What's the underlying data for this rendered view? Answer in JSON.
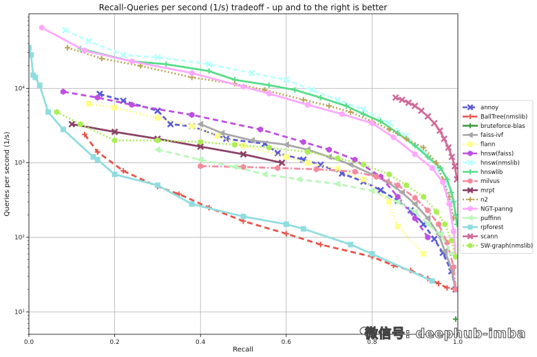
{
  "chart_data": {
    "type": "line",
    "title": "Recall-Queries per second (1/s) tradeoff - up and to the right is better",
    "xlabel": "Recall",
    "ylabel": "Queries per second (1/s)",
    "xlim": [
      0.0,
      1.0
    ],
    "ylim": [
      5,
      100000
    ],
    "yscale": "log",
    "xticks": [
      "0.0",
      "0.2",
      "0.4",
      "0.6",
      "0.8",
      "1.0"
    ],
    "yticks": [
      "10¹",
      "10²",
      "10³",
      "10⁴"
    ],
    "grid": true,
    "legend_position": "right",
    "series": [
      {
        "name": "annoy",
        "color": "#5b5bd6",
        "dash": "7,4",
        "marker": "x",
        "points": [
          [
            0.165,
            8400
          ],
          [
            0.22,
            6800
          ],
          [
            0.3,
            5000
          ],
          [
            0.33,
            3300
          ],
          [
            0.38,
            3100
          ],
          [
            0.46,
            2100
          ],
          [
            0.55,
            1800
          ],
          [
            0.58,
            1350
          ],
          [
            0.64,
            1100
          ],
          [
            0.68,
            940
          ],
          [
            0.73,
            720
          ],
          [
            0.78,
            560
          ],
          [
            0.82,
            430
          ],
          [
            0.86,
            310
          ],
          [
            0.89,
            230
          ],
          [
            0.92,
            150
          ],
          [
            0.945,
            95
          ],
          [
            0.965,
            62
          ],
          [
            0.985,
            35
          ],
          [
            0.995,
            20
          ]
        ]
      },
      {
        "name": "BallTree(nmslib)",
        "color": "#e8534a",
        "dash": "8,5",
        "marker": "+",
        "points": [
          [
            0.13,
            2400
          ],
          [
            0.16,
            1400
          ],
          [
            0.22,
            780
          ],
          [
            0.3,
            480
          ],
          [
            0.35,
            380
          ],
          [
            0.42,
            250
          ],
          [
            0.5,
            165
          ],
          [
            0.6,
            112
          ],
          [
            0.68,
            80
          ],
          [
            0.8,
            55
          ],
          [
            0.85,
            42
          ],
          [
            0.89,
            36
          ],
          [
            0.93,
            28
          ],
          [
            0.955,
            24
          ],
          [
            0.975,
            21
          ],
          [
            0.995,
            20
          ]
        ]
      },
      {
        "name": "bruteforce-blas",
        "color": "#3a9a3a",
        "dash": "none",
        "marker": "+",
        "points": [
          [
            0.995,
            8
          ]
        ]
      },
      {
        "name": "faiss-ivf",
        "color": "#a8a8a8",
        "dash": "none",
        "marker": "<",
        "points": [
          [
            0.4,
            3300
          ],
          [
            0.45,
            2500
          ],
          [
            0.52,
            2000
          ],
          [
            0.6,
            1750
          ],
          [
            0.65,
            1500
          ],
          [
            0.7,
            1200
          ],
          [
            0.75,
            950
          ],
          [
            0.8,
            700
          ],
          [
            0.835,
            560
          ],
          [
            0.87,
            400
          ],
          [
            0.9,
            280
          ],
          [
            0.93,
            180
          ],
          [
            0.955,
            110
          ],
          [
            0.97,
            65
          ],
          [
            0.985,
            38
          ],
          [
            0.995,
            20
          ]
        ]
      },
      {
        "name": "flann",
        "color": "#ffff88",
        "dash": "2,3",
        "marker": "s",
        "points": [
          [
            0.14,
            6200
          ],
          [
            0.2,
            5500
          ],
          [
            0.3,
            4000
          ],
          [
            0.38,
            3100
          ],
          [
            0.44,
            2300
          ],
          [
            0.5,
            1700
          ],
          [
            0.6,
            1200
          ],
          [
            0.65,
            1000
          ],
          [
            0.72,
            830
          ],
          [
            0.78,
            600
          ],
          [
            0.84,
            300
          ],
          [
            0.86,
            140
          ],
          [
            0.92,
            60
          ]
        ]
      },
      {
        "name": "hnsw(faiss)",
        "color": "#bf4fe0",
        "dash": "8,5",
        "marker": "h",
        "points": [
          [
            0.08,
            9000
          ],
          [
            0.16,
            7500
          ],
          [
            0.24,
            6000
          ],
          [
            0.38,
            4400
          ],
          [
            0.54,
            2800
          ],
          [
            0.64,
            1900
          ],
          [
            0.7,
            1500
          ],
          [
            0.76,
            1100
          ],
          [
            0.82,
            650
          ],
          [
            0.86,
            350
          ],
          [
            0.9,
            180
          ],
          [
            0.93,
            100
          ]
        ]
      },
      {
        "name": "hnsw(nmslib)",
        "color": "#b8ffff",
        "dash": "7,4",
        "marker": "x",
        "points": [
          [
            0.085,
            60000
          ],
          [
            0.14,
            43000
          ],
          [
            0.22,
            28000
          ],
          [
            0.3,
            26000
          ],
          [
            0.42,
            21000
          ],
          [
            0.52,
            16000
          ],
          [
            0.6,
            13000
          ],
          [
            0.66,
            9500
          ],
          [
            0.72,
            7000
          ],
          [
            0.78,
            5200
          ],
          [
            0.84,
            3400
          ],
          [
            0.88,
            2300
          ],
          [
            0.92,
            1400
          ],
          [
            0.95,
            850
          ],
          [
            0.97,
            550
          ],
          [
            0.985,
            300
          ]
        ]
      },
      {
        "name": "hnswlib",
        "color": "#55dd88",
        "dash": "none",
        "marker": "+",
        "points": [
          [
            0.12,
            34000
          ],
          [
            0.24,
            23000
          ],
          [
            0.32,
            21000
          ],
          [
            0.42,
            17000
          ],
          [
            0.48,
            13000
          ],
          [
            0.56,
            11000
          ],
          [
            0.62,
            9500
          ],
          [
            0.68,
            7500
          ],
          [
            0.74,
            5800
          ],
          [
            0.78,
            4500
          ],
          [
            0.82,
            3600
          ],
          [
            0.86,
            2500
          ],
          [
            0.9,
            1700
          ],
          [
            0.93,
            1200
          ],
          [
            0.96,
            850
          ],
          [
            0.975,
            600
          ],
          [
            0.985,
            400
          ],
          [
            0.99,
            300
          ],
          [
            0.995,
            200
          ],
          [
            0.998,
            150
          ]
        ]
      },
      {
        "name": "milvus",
        "color": "#f48a9e",
        "dash": "9,3,2,3",
        "marker": "h",
        "points": [
          [
            0.4,
            900
          ],
          [
            0.5,
            880
          ],
          [
            0.58,
            850
          ],
          [
            0.67,
            820
          ],
          [
            0.76,
            760
          ],
          [
            0.81,
            650
          ],
          [
            0.86,
            500
          ],
          [
            0.9,
            340
          ],
          [
            0.93,
            230
          ],
          [
            0.955,
            150
          ],
          [
            0.975,
            85
          ],
          [
            0.99,
            40
          ],
          [
            0.995,
            20
          ]
        ]
      },
      {
        "name": "mrpt",
        "color": "#8b4266",
        "dash": "none",
        "marker": "x",
        "points": [
          [
            0.1,
            3300
          ],
          [
            0.2,
            2600
          ],
          [
            0.3,
            2100
          ],
          [
            0.4,
            1650
          ],
          [
            0.5,
            1300
          ],
          [
            0.59,
            1000
          ]
        ]
      },
      {
        "name": "n2",
        "color": "#b7a355",
        "dash": "2,3",
        "marker": "+",
        "points": [
          [
            0.09,
            35000
          ],
          [
            0.17,
            25000
          ],
          [
            0.26,
            20000
          ],
          [
            0.38,
            14000
          ],
          [
            0.48,
            11500
          ],
          [
            0.55,
            9500
          ],
          [
            0.64,
            7000
          ],
          [
            0.7,
            5800
          ],
          [
            0.75,
            4800
          ],
          [
            0.8,
            3600
          ],
          [
            0.84,
            2800
          ],
          [
            0.88,
            2100
          ],
          [
            0.92,
            1600
          ],
          [
            0.95,
            1000
          ],
          [
            0.965,
            600
          ],
          [
            0.98,
            350
          ],
          [
            0.99,
            180
          ]
        ]
      },
      {
        "name": "NGT-panng",
        "color": "#ffa8ff",
        "dash": "none",
        "marker": "h",
        "points": [
          [
            0.03,
            65000
          ],
          [
            0.13,
            32000
          ],
          [
            0.24,
            23000
          ],
          [
            0.38,
            16000
          ],
          [
            0.5,
            10500
          ],
          [
            0.56,
            8500
          ],
          [
            0.65,
            6000
          ],
          [
            0.73,
            4500
          ],
          [
            0.8,
            3400
          ],
          [
            0.85,
            2200
          ],
          [
            0.9,
            1300
          ],
          [
            0.94,
            850
          ],
          [
            0.965,
            550
          ],
          [
            0.98,
            280
          ],
          [
            0.99,
            120
          ],
          [
            0.995,
            55
          ]
        ]
      },
      {
        "name": "puffinn",
        "color": "#b9f7b9",
        "dash": "8,5",
        "marker": "<",
        "points": [
          [
            0.3,
            1500
          ],
          [
            0.4,
            1100
          ],
          [
            0.48,
            880
          ],
          [
            0.55,
            700
          ],
          [
            0.63,
            600
          ],
          [
            0.72,
            520
          ],
          [
            0.8,
            420
          ],
          [
            0.86,
            300
          ],
          [
            0.9,
            220
          ],
          [
            0.93,
            150
          ],
          [
            0.96,
            110
          ],
          [
            0.985,
            60
          ]
        ]
      },
      {
        "name": "rpforest",
        "color": "#90dde0",
        "dash": "none",
        "marker": "s",
        "points": [
          [
            0.0,
            35000
          ],
          [
            0.005,
            28000
          ],
          [
            0.01,
            15000
          ],
          [
            0.015,
            14000
          ],
          [
            0.025,
            11000
          ],
          [
            0.045,
            4800
          ],
          [
            0.08,
            2800
          ],
          [
            0.15,
            1200
          ],
          [
            0.16,
            1100
          ],
          [
            0.2,
            700
          ],
          [
            0.3,
            500
          ],
          [
            0.38,
            280
          ],
          [
            0.5,
            190
          ],
          [
            0.6,
            150
          ],
          [
            0.64,
            130
          ],
          [
            0.75,
            80
          ],
          [
            0.8,
            60
          ],
          [
            0.94,
            26
          ]
        ]
      },
      {
        "name": "scann",
        "color": "#d06a9a",
        "dash": "none",
        "marker": "x",
        "points": [
          [
            0.855,
            7500
          ],
          [
            0.87,
            7000
          ],
          [
            0.885,
            6400
          ],
          [
            0.9,
            5800
          ],
          [
            0.915,
            5000
          ],
          [
            0.93,
            4200
          ],
          [
            0.945,
            3400
          ],
          [
            0.958,
            2700
          ],
          [
            0.968,
            2100
          ],
          [
            0.978,
            1600
          ],
          [
            0.986,
            1200
          ],
          [
            0.993,
            900
          ],
          [
            0.998,
            600
          ]
        ]
      },
      {
        "name": "SW-graph(nmslib)",
        "color": "#aaee55",
        "dash": "2,3",
        "marker": "h",
        "points": [
          [
            0.065,
            4800
          ],
          [
            0.12,
            3300
          ],
          [
            0.2,
            2000
          ],
          [
            0.3,
            2000
          ],
          [
            0.4,
            1900
          ],
          [
            0.48,
            1750
          ],
          [
            0.56,
            1600
          ],
          [
            0.65,
            1400
          ],
          [
            0.72,
            1150
          ],
          [
            0.78,
            950
          ],
          [
            0.84,
            700
          ],
          [
            0.88,
            500
          ],
          [
            0.92,
            350
          ],
          [
            0.95,
            220
          ],
          [
            0.97,
            150
          ],
          [
            0.985,
            90
          ],
          [
            0.995,
            55
          ]
        ]
      }
    ]
  },
  "watermark": {
    "text": "微信号: deephub-imba"
  }
}
